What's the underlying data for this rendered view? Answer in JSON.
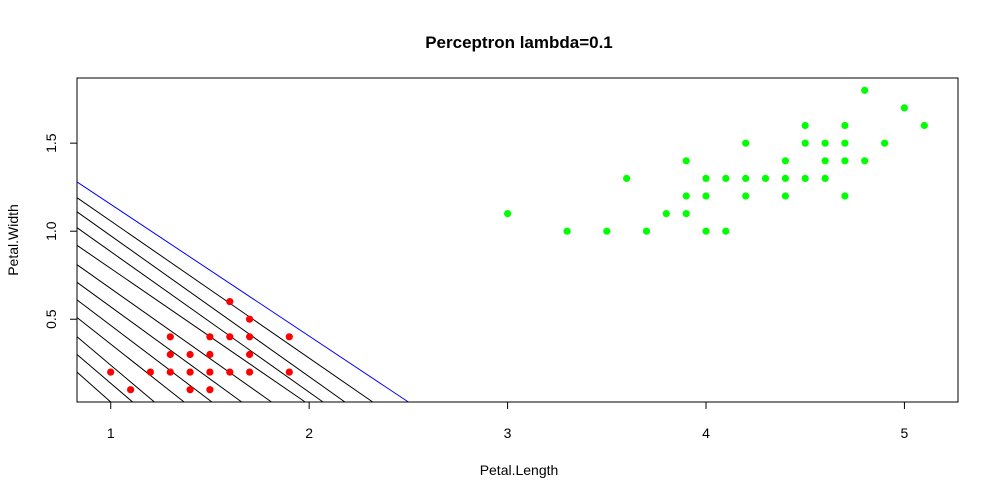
{
  "chart_data": {
    "type": "scatter",
    "title": "Perceptron lambda=0.1",
    "xlabel": "Petal.Length",
    "ylabel": "Petal.Width",
    "xlim": [
      0.83,
      5.27
    ],
    "ylim": [
      0.03,
      1.87
    ],
    "x_ticks": [
      1,
      2,
      3,
      4,
      5
    ],
    "x_tick_labels": [
      "1",
      "2",
      "3",
      "4",
      "5"
    ],
    "y_ticks": [
      0.5,
      1.0,
      1.5
    ],
    "y_tick_labels": [
      "0.5",
      "1.0",
      "1.5"
    ],
    "grid": false,
    "series": [
      {
        "color": "#ff0000",
        "points": [
          [
            1.0,
            0.2
          ],
          [
            1.1,
            0.1
          ],
          [
            1.2,
            0.2
          ],
          [
            1.3,
            0.4
          ],
          [
            1.3,
            0.3
          ],
          [
            1.3,
            0.2
          ],
          [
            1.4,
            0.3
          ],
          [
            1.4,
            0.2
          ],
          [
            1.4,
            0.1
          ],
          [
            1.5,
            0.4
          ],
          [
            1.5,
            0.3
          ],
          [
            1.5,
            0.2
          ],
          [
            1.5,
            0.1
          ],
          [
            1.6,
            0.6
          ],
          [
            1.6,
            0.4
          ],
          [
            1.6,
            0.2
          ],
          [
            1.7,
            0.5
          ],
          [
            1.7,
            0.4
          ],
          [
            1.7,
            0.3
          ],
          [
            1.7,
            0.2
          ],
          [
            1.9,
            0.4
          ],
          [
            1.9,
            0.2
          ]
        ]
      },
      {
        "color": "#00ff00",
        "points": [
          [
            3.0,
            1.1
          ],
          [
            3.3,
            1.0
          ],
          [
            3.5,
            1.0
          ],
          [
            3.6,
            1.3
          ],
          [
            3.7,
            1.0
          ],
          [
            3.8,
            1.1
          ],
          [
            3.9,
            1.4
          ],
          [
            3.9,
            1.2
          ],
          [
            3.9,
            1.1
          ],
          [
            4.0,
            1.3
          ],
          [
            4.0,
            1.2
          ],
          [
            4.0,
            1.0
          ],
          [
            4.1,
            1.3
          ],
          [
            4.1,
            1.0
          ],
          [
            4.2,
            1.5
          ],
          [
            4.2,
            1.3
          ],
          [
            4.2,
            1.2
          ],
          [
            4.3,
            1.3
          ],
          [
            4.4,
            1.4
          ],
          [
            4.4,
            1.3
          ],
          [
            4.4,
            1.2
          ],
          [
            4.5,
            1.6
          ],
          [
            4.5,
            1.5
          ],
          [
            4.5,
            1.3
          ],
          [
            4.6,
            1.5
          ],
          [
            4.6,
            1.4
          ],
          [
            4.6,
            1.3
          ],
          [
            4.7,
            1.6
          ],
          [
            4.7,
            1.5
          ],
          [
            4.7,
            1.4
          ],
          [
            4.7,
            1.2
          ],
          [
            4.8,
            1.8
          ],
          [
            4.8,
            1.4
          ],
          [
            4.9,
            1.5
          ],
          [
            5.0,
            1.7
          ],
          [
            5.1,
            1.6
          ]
        ]
      }
    ],
    "decision_lines": [
      {
        "color": "#000000",
        "from": [
          0.83,
          0.2
        ],
        "to": [
          1.0,
          0.03
        ]
      },
      {
        "color": "#000000",
        "from": [
          0.83,
          0.3
        ],
        "to": [
          1.11,
          0.03
        ]
      },
      {
        "color": "#000000",
        "from": [
          0.83,
          0.4
        ],
        "to": [
          1.22,
          0.03
        ]
      },
      {
        "color": "#000000",
        "from": [
          0.83,
          0.51
        ],
        "to": [
          1.37,
          0.03
        ]
      },
      {
        "color": "#000000",
        "from": [
          0.83,
          0.61
        ],
        "to": [
          1.51,
          0.03
        ]
      },
      {
        "color": "#000000",
        "from": [
          0.83,
          0.71
        ],
        "to": [
          1.66,
          0.03
        ]
      },
      {
        "color": "#000000",
        "from": [
          0.83,
          0.81
        ],
        "to": [
          1.81,
          0.03
        ]
      },
      {
        "color": "#000000",
        "from": [
          0.83,
          0.92
        ],
        "to": [
          1.98,
          0.03
        ]
      },
      {
        "color": "#000000",
        "from": [
          0.83,
          1.02
        ],
        "to": [
          2.07,
          0.03
        ]
      },
      {
        "color": "#000000",
        "from": [
          0.83,
          1.11
        ],
        "to": [
          2.18,
          0.03
        ]
      },
      {
        "color": "#000000",
        "from": [
          0.83,
          1.19
        ],
        "to": [
          2.32,
          0.03
        ]
      },
      {
        "color": "#0000ff",
        "from": [
          0.83,
          1.28
        ],
        "to": [
          2.5,
          0.03
        ]
      }
    ]
  }
}
